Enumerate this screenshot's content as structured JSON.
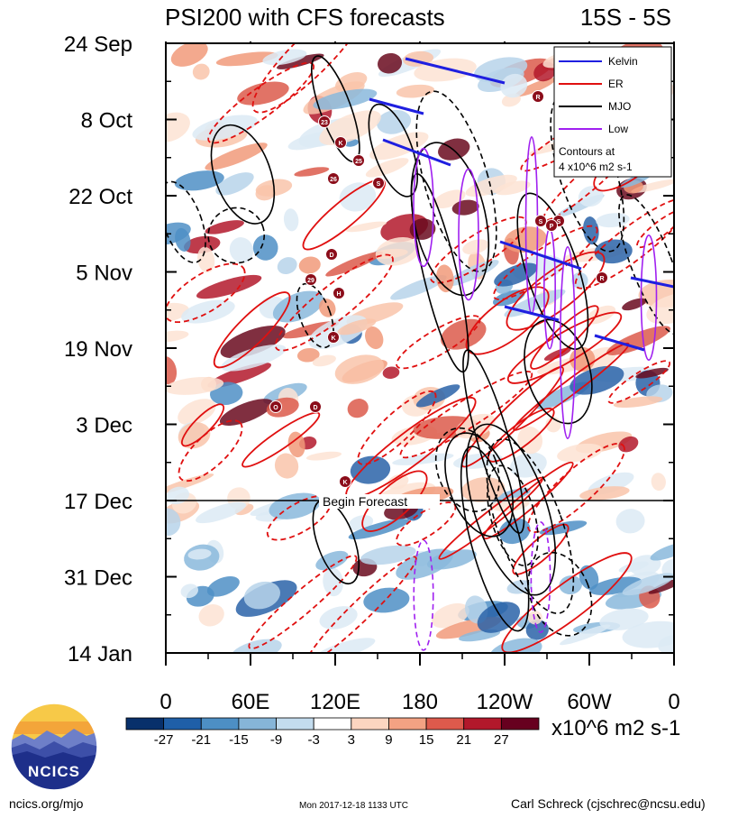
{
  "header": {
    "title": "PSI200 with CFS forecasts",
    "region": "15S - 5S"
  },
  "chart_data": {
    "type": "heatmap",
    "title": "PSI200 with CFS forecasts",
    "region": "15S - 5S",
    "x_tick_labels": [
      "0",
      "60E",
      "120E",
      "180",
      "120W",
      "60W",
      "0"
    ],
    "x_ticks_deg": [
      0,
      60,
      120,
      180,
      240,
      300,
      360
    ],
    "y_tick_labels": [
      "24 Sep",
      "8 Oct",
      "22 Oct",
      "5 Nov",
      "19 Nov",
      "3 Dec",
      "17 Dec",
      "31 Dec",
      "14 Jan"
    ],
    "begin_forecast_label": "Begin Forecast",
    "begin_forecast_date": "17 Dec",
    "legend": {
      "placement": "top-right",
      "entries": [
        {
          "name": "Kelvin",
          "color": "#1f1fe0"
        },
        {
          "name": "ER",
          "color": "#e01010"
        },
        {
          "name": "MJO",
          "color": "#000000"
        },
        {
          "name": "Low",
          "color": "#a020f0"
        }
      ],
      "note_line1": "Contours at",
      "note_line2": "4 x10^6 m2 s-1"
    },
    "colorbar": {
      "tick_labels": [
        "-27",
        "-21",
        "-15",
        "-9",
        "-3",
        "3",
        "9",
        "15",
        "21",
        "27"
      ],
      "colors": [
        "#08306b",
        "#1f5fa8",
        "#4d8fc4",
        "#86b5d8",
        "#c3dcee",
        "#ffffff",
        "#fcd5c0",
        "#f3a283",
        "#dd5a4c",
        "#b2182b",
        "#67001f"
      ],
      "units": "x10^6 m2 s-1"
    },
    "storms": [
      "23",
      "K",
      "25",
      "26",
      "S",
      "R",
      "S",
      "S",
      "P",
      "D",
      "29",
      "H",
      "R",
      "K",
      "O",
      "D",
      "K"
    ]
  },
  "logo": {
    "text": "NCICS"
  },
  "footer": {
    "left": "ncics.org/mjo",
    "center": "Mon 2017-12-18 1133 UTC",
    "right": "Carl Schreck (cjschrec@ncsu.edu)"
  }
}
